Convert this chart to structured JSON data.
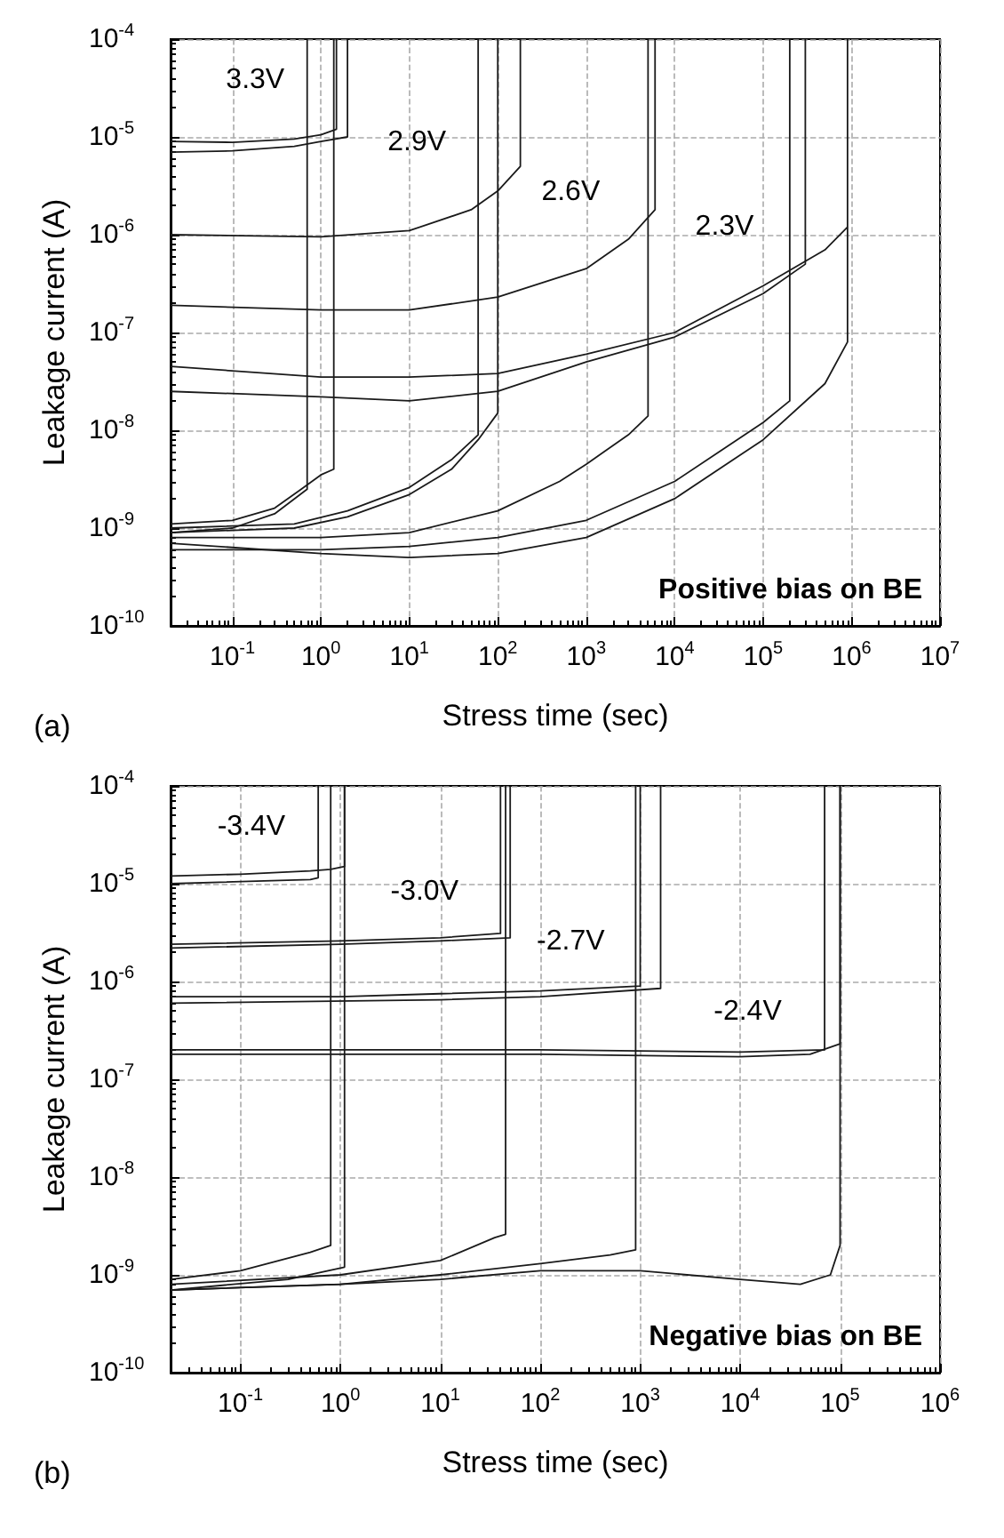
{
  "chart_data": [
    {
      "type": "line",
      "title": "(a)",
      "xlabel": "Stress time (sec)",
      "ylabel": "Leakage current (A)",
      "log": "xy",
      "grid": true,
      "marker": "none",
      "xlim": [
        0.02,
        10000000
      ],
      "ylim": [
        1e-10,
        0.0001
      ],
      "xticks": [
        {
          "value": 0.1,
          "label": "10$^{-1}$"
        },
        {
          "value": 1,
          "label": "10$^{0}$"
        },
        {
          "value": 10,
          "label": "10$^{1}$"
        },
        {
          "value": 100,
          "label": "10$^{2}$"
        },
        {
          "value": 1000,
          "label": "10$^{3}$"
        },
        {
          "value": 10000,
          "label": "10$^{4}$"
        },
        {
          "value": 100000,
          "label": "10$^{5}$"
        },
        {
          "value": 1000000,
          "label": "10$^{6}$"
        },
        {
          "value": 10000000,
          "label": "10$^{7}$"
        }
      ],
      "yticks": [
        {
          "value": 1e-10,
          "label": "10$^{-10}$"
        },
        {
          "value": 1e-09,
          "label": "10$^{-9}$"
        },
        {
          "value": 1e-08,
          "label": "10$^{-8}$"
        },
        {
          "value": 1e-07,
          "label": "10$^{-7}$"
        },
        {
          "value": 1e-06,
          "label": "10$^{-6}$"
        },
        {
          "value": 1e-05,
          "label": "10$^{-5}$"
        },
        {
          "value": 0.0001,
          "label": "10$^{-4}$"
        }
      ],
      "annotations": [
        "3.3V",
        "2.9V",
        "2.6V",
        "2.3V",
        "Positive bias on BE"
      ],
      "series": [
        {
          "color": "#1a1a1a",
          "x": [
            0.02,
            0.1,
            0.5,
            1,
            1.5,
            1.5
          ],
          "values": [
            9e-06,
            8.8e-06,
            9.5e-06,
            1.05e-05,
            1.2e-05,
            0.0001
          ]
        },
        {
          "color": "#1a1a1a",
          "x": [
            0.02,
            0.1,
            0.5,
            1,
            2,
            2
          ],
          "values": [
            7e-06,
            7.2e-06,
            8e-06,
            9e-06,
            1e-05,
            0.0001
          ]
        },
        {
          "color": "#1a1a1a",
          "x": [
            0.02,
            0.1,
            0.3,
            0.6,
            1,
            1.4,
            1.4
          ],
          "values": [
            1.1e-09,
            1.2e-09,
            1.6e-09,
            2.5e-09,
            3.5e-09,
            4e-09,
            0.0001
          ]
        },
        {
          "color": "#1a1a1a",
          "x": [
            0.02,
            0.1,
            0.3,
            0.7,
            0.7
          ],
          "values": [
            9e-10,
            1e-09,
            1.4e-09,
            2.5e-09,
            0.0001
          ]
        },
        {
          "color": "#1a1a1a",
          "x": [
            0.02,
            1,
            10,
            50,
            100,
            180,
            180
          ],
          "values": [
            1e-06,
            9.5e-07,
            1.1e-06,
            1.8e-06,
            2.8e-06,
            5e-06,
            0.0001
          ]
        },
        {
          "color": "#1a1a1a",
          "x": [
            0.02,
            0.5,
            2,
            10,
            30,
            60,
            100,
            100
          ],
          "values": [
            9e-10,
            1e-09,
            1.3e-09,
            2.2e-09,
            4e-09,
            8e-09,
            1.5e-08,
            0.0001
          ]
        },
        {
          "color": "#1a1a1a",
          "x": [
            0.02,
            0.5,
            2,
            10,
            30,
            60,
            60
          ],
          "values": [
            1e-09,
            1.1e-09,
            1.5e-09,
            2.6e-09,
            5e-09,
            9e-09,
            0.0001
          ]
        },
        {
          "color": "#1a1a1a",
          "x": [
            0.02,
            1,
            10,
            100,
            1000,
            3000,
            6000,
            6000
          ],
          "values": [
            1.9e-07,
            1.7e-07,
            1.7e-07,
            2.3e-07,
            4.5e-07,
            9e-07,
            1.8e-06,
            0.0001
          ]
        },
        {
          "color": "#1a1a1a",
          "x": [
            0.02,
            1,
            10,
            100,
            500,
            1000,
            3000,
            5000,
            5000
          ],
          "values": [
            8e-10,
            8e-10,
            9e-10,
            1.5e-09,
            3e-09,
            4.5e-09,
            9e-09,
            1.4e-08,
            0.0001
          ]
        },
        {
          "color": "#1a1a1a",
          "x": [
            0.02,
            1,
            10,
            100,
            1000,
            10000,
            100000,
            500000,
            900000
          ],
          "values": [
            4.5e-08,
            3.5e-08,
            3.5e-08,
            3.8e-08,
            6e-08,
            1e-07,
            3e-07,
            7e-07,
            1.2e-06
          ]
        },
        {
          "color": "#1a1a1a",
          "x": [
            0.02,
            1,
            10,
            100,
            1000,
            10000,
            100000,
            300000,
            300000
          ],
          "values": [
            2.5e-08,
            2.2e-08,
            2e-08,
            2.5e-08,
            5e-08,
            9e-08,
            2.5e-07,
            5e-07,
            0.0001
          ]
        },
        {
          "color": "#1a1a1a",
          "x": [
            0.02,
            1,
            10,
            100,
            1000,
            10000,
            100000,
            500000,
            900000,
            900000
          ],
          "values": [
            7e-10,
            5.5e-10,
            5e-10,
            5.5e-10,
            8e-10,
            2e-09,
            8e-09,
            3e-08,
            8e-08,
            0.0001
          ]
        },
        {
          "color": "#1a1a1a",
          "x": [
            0.02,
            1,
            10,
            100,
            1000,
            10000,
            100000,
            200000,
            200000
          ],
          "values": [
            6e-10,
            6e-10,
            6.5e-10,
            8e-10,
            1.2e-09,
            3e-09,
            1.2e-08,
            2e-08,
            0.0001
          ]
        }
      ]
    },
    {
      "type": "line",
      "title": "(b)",
      "xlabel": "Stress time (sec)",
      "ylabel": "Leakage current (A)",
      "log": "xy",
      "grid": true,
      "marker": "none",
      "xlim": [
        0.02,
        1000000
      ],
      "ylim": [
        1e-10,
        0.0001
      ],
      "xticks": [
        {
          "value": 0.1,
          "label": "10$^{-1}$"
        },
        {
          "value": 1,
          "label": "10$^{0}$"
        },
        {
          "value": 10,
          "label": "10$^{1}$"
        },
        {
          "value": 100,
          "label": "10$^{2}$"
        },
        {
          "value": 1000,
          "label": "10$^{3}$"
        },
        {
          "value": 10000,
          "label": "10$^{4}$"
        },
        {
          "value": 100000,
          "label": "10$^{5}$"
        },
        {
          "value": 1000000,
          "label": "10$^{6}$"
        }
      ],
      "yticks": [
        {
          "value": 1e-10,
          "label": "10$^{-10}$"
        },
        {
          "value": 1e-09,
          "label": "10$^{-9}$"
        },
        {
          "value": 1e-08,
          "label": "10$^{-8}$"
        },
        {
          "value": 1e-07,
          "label": "10$^{-7}$"
        },
        {
          "value": 1e-06,
          "label": "10$^{-6}$"
        },
        {
          "value": 1e-05,
          "label": "10$^{-5}$"
        },
        {
          "value": 0.0001,
          "label": "10$^{-4}$"
        }
      ],
      "annotations": [
        "-3.4V",
        "-3.0V",
        "-2.7V",
        "-2.4V",
        "Negative bias on BE"
      ],
      "series": [
        {
          "color": "#1a1a1a",
          "x": [
            0.02,
            0.1,
            0.5,
            0.8,
            1.1,
            1.1
          ],
          "values": [
            1.2e-05,
            1.25e-05,
            1.35e-05,
            1.4e-05,
            1.5e-05,
            0.0001
          ]
        },
        {
          "color": "#1a1a1a",
          "x": [
            0.02,
            0.5,
            0.6,
            0.6
          ],
          "values": [
            1e-05,
            1.1e-05,
            1.15e-05,
            0.0001
          ]
        },
        {
          "color": "#1a1a1a",
          "x": [
            0.02,
            0.1,
            0.5,
            0.8,
            0.8
          ],
          "values": [
            9e-10,
            1.1e-09,
            1.7e-09,
            2e-09,
            0.0001
          ]
        },
        {
          "color": "#1a1a1a",
          "x": [
            0.02,
            0.3,
            1.1,
            1.1
          ],
          "values": [
            7e-10,
            9e-10,
            1.2e-09,
            0.0001
          ]
        },
        {
          "color": "#1a1a1a",
          "x": [
            0.02,
            1,
            10,
            40,
            40
          ],
          "values": [
            2.4e-06,
            2.6e-06,
            2.8e-06,
            3.1e-06,
            0.0001
          ]
        },
        {
          "color": "#1a1a1a",
          "x": [
            0.02,
            1,
            10,
            50,
            50
          ],
          "values": [
            2.2e-06,
            2.4e-06,
            2.6e-06,
            2.8e-06,
            0.0001
          ]
        },
        {
          "color": "#1a1a1a",
          "x": [
            0.02,
            1,
            10,
            35,
            45,
            45
          ],
          "values": [
            8e-10,
            1e-09,
            1.4e-09,
            2.4e-09,
            2.6e-09,
            0.0001
          ]
        },
        {
          "color": "#1a1a1a",
          "x": [
            0.02,
            1,
            10,
            100,
            1000,
            1000
          ],
          "values": [
            7e-07,
            7e-07,
            7.5e-07,
            8e-07,
            9e-07,
            0.0001
          ]
        },
        {
          "color": "#1a1a1a",
          "x": [
            0.02,
            10,
            100,
            1600,
            1600
          ],
          "values": [
            6e-07,
            6.5e-07,
            7e-07,
            8.5e-07,
            0.0001
          ]
        },
        {
          "color": "#1a1a1a",
          "x": [
            0.02,
            1,
            10,
            100,
            500,
            900,
            900
          ],
          "values": [
            7e-10,
            8e-10,
            1e-09,
            1.3e-09,
            1.6e-09,
            1.8e-09,
            0.0001
          ]
        },
        {
          "color": "#1a1a1a",
          "x": [
            0.02,
            1,
            100,
            10000,
            50000,
            100000,
            100000
          ],
          "values": [
            1.8e-07,
            1.8e-07,
            1.8e-07,
            1.7e-07,
            1.8e-07,
            2.3e-07,
            0.0001
          ]
        },
        {
          "color": "#1a1a1a",
          "x": [
            0.02,
            100,
            10000,
            70000,
            70000
          ],
          "values": [
            2e-07,
            2e-07,
            1.9e-07,
            2e-07,
            0.0001
          ]
        },
        {
          "color": "#1a1a1a",
          "x": [
            0.02,
            1,
            10,
            100,
            1000,
            10000,
            40000,
            80000,
            100000,
            100000
          ],
          "values": [
            7e-10,
            8e-10,
            9e-10,
            1.1e-09,
            1.1e-09,
            9e-10,
            8e-10,
            1e-09,
            2e-09,
            0.0001
          ]
        }
      ]
    }
  ]
}
